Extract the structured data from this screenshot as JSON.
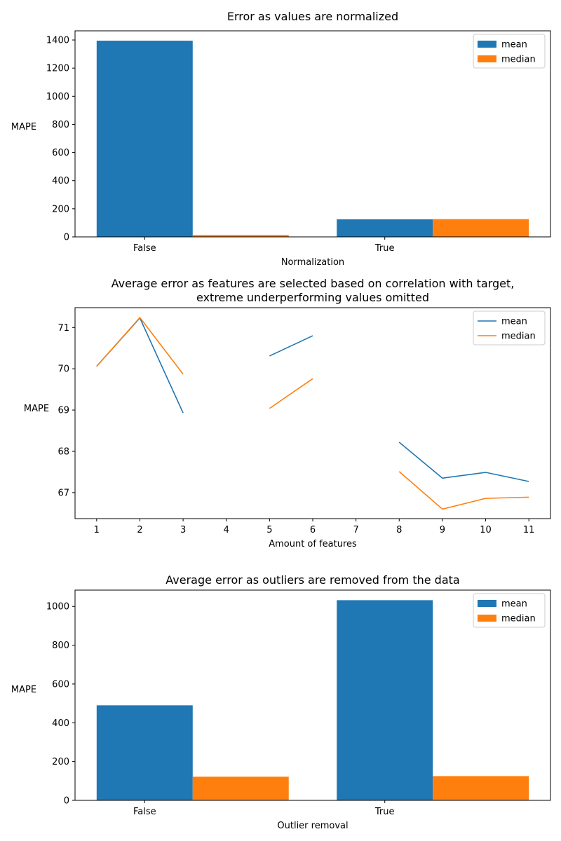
{
  "chart_data": [
    {
      "type": "bar",
      "title": "Error as values are normalized",
      "xlabel": "Normalization",
      "ylabel": "MAPE",
      "categories": [
        "False",
        "True"
      ],
      "series": [
        {
          "name": "mean",
          "values": [
            1395,
            125
          ],
          "color": "#1f77b4"
        },
        {
          "name": "median",
          "values": [
            13,
            126
          ],
          "color": "#ff7f0e"
        }
      ],
      "ylim": [
        0,
        1465
      ],
      "yticks": [
        0,
        200,
        400,
        600,
        800,
        1000,
        1200,
        1400
      ],
      "legend": "top-right",
      "grid": false
    },
    {
      "type": "line",
      "title": "Average error as features are selected based on correlation with target,",
      "title_line2": "extreme underperforming values omitted",
      "xlabel": "Amount of features",
      "ylabel": "MAPE",
      "x": [
        1,
        2,
        3,
        4,
        5,
        6,
        7,
        8,
        9,
        10,
        11
      ],
      "xticks": [
        1,
        2,
        3,
        4,
        5,
        6,
        7,
        8,
        9,
        10,
        11
      ],
      "series": [
        {
          "name": "mean",
          "values": [
            70.06,
            71.23,
            68.93,
            null,
            70.31,
            70.8,
            null,
            68.22,
            67.35,
            67.49,
            67.27
          ],
          "color": "#1f77b4"
        },
        {
          "name": "median",
          "values": [
            70.06,
            71.24,
            69.87,
            null,
            69.04,
            69.76,
            null,
            67.51,
            66.6,
            66.86,
            66.89
          ],
          "color": "#ff7f0e"
        }
      ],
      "xlim": [
        0.5,
        11.5
      ],
      "ylim": [
        66.37,
        71.48
      ],
      "yticks": [
        67,
        68,
        69,
        70,
        71
      ],
      "legend": "top-right",
      "grid": false
    },
    {
      "type": "bar",
      "title": "Average error as outliers are removed from the data",
      "xlabel": "Outlier removal",
      "ylabel": "MAPE",
      "categories": [
        "False",
        "True"
      ],
      "series": [
        {
          "name": "mean",
          "values": [
            490,
            1032
          ],
          "color": "#1f77b4"
        },
        {
          "name": "median",
          "values": [
            122,
            125
          ],
          "color": "#ff7f0e"
        }
      ],
      "ylim": [
        0,
        1084
      ],
      "yticks": [
        0,
        200,
        400,
        600,
        800,
        1000
      ],
      "legend": "top-right",
      "grid": false
    }
  ]
}
